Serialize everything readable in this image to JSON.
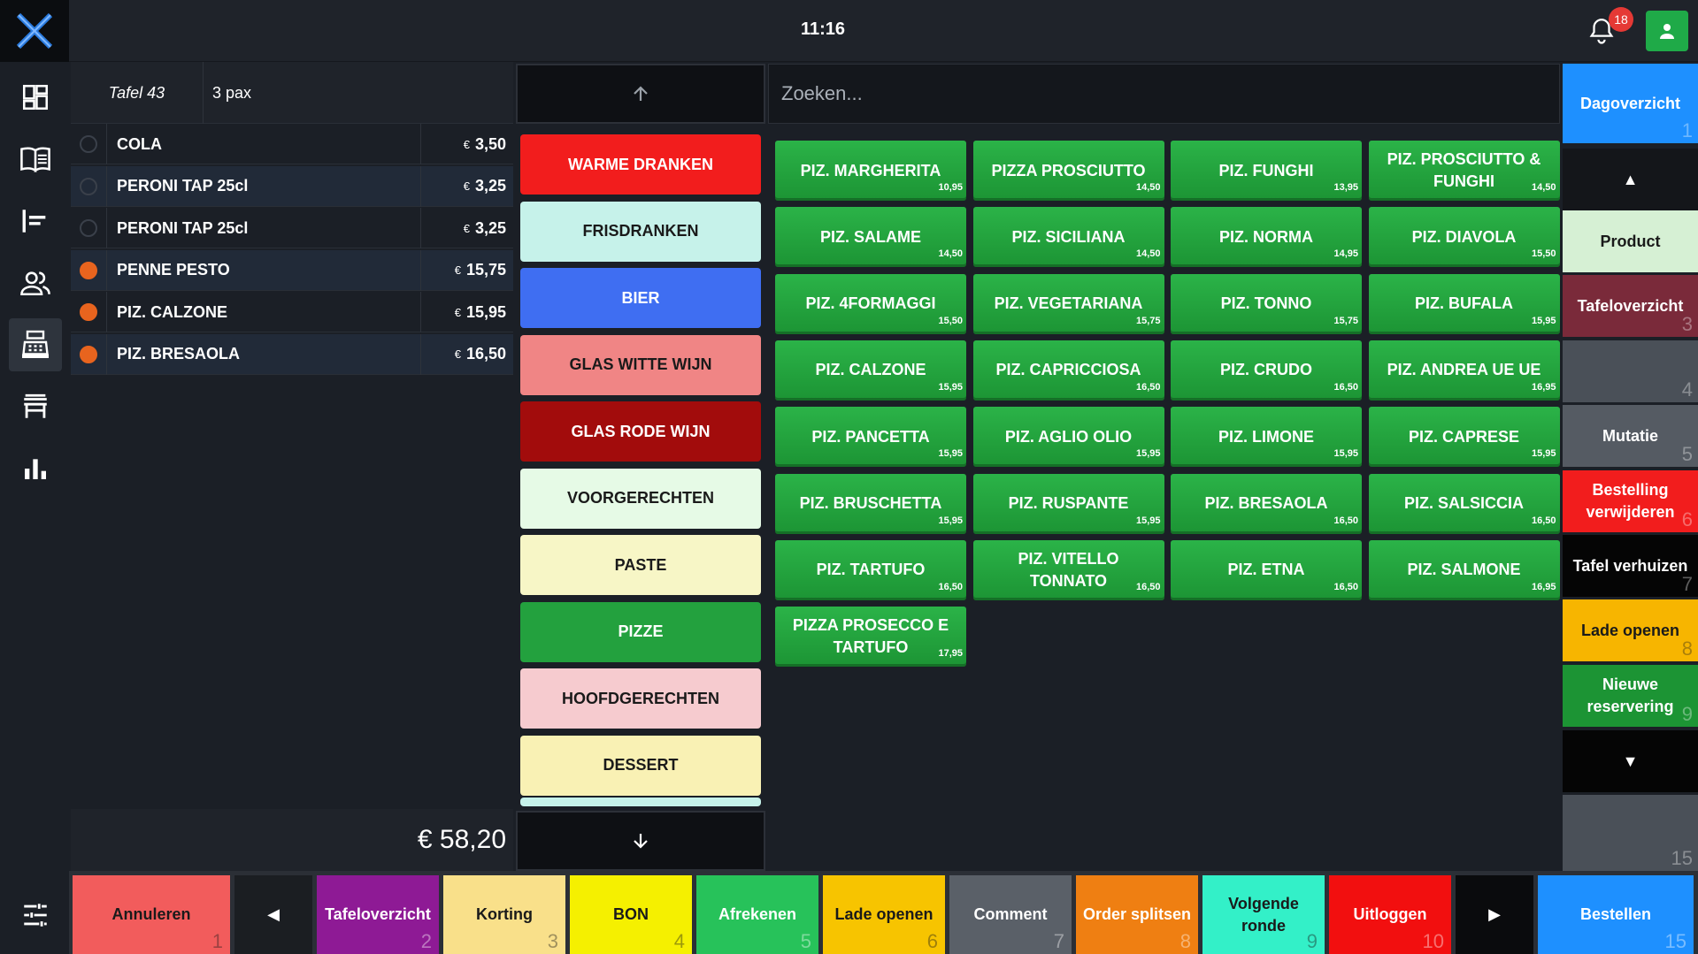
{
  "topbar": {
    "time": "11:16",
    "notifications": "18"
  },
  "colors": {
    "accent_green": "#1faa48",
    "badge_red": "#e53935",
    "dot_orange": "#e8641e"
  },
  "order": {
    "table": "Tafel 43",
    "pax": "3 pax",
    "currency": "€",
    "items": [
      {
        "name": "COLA",
        "price": "3,50",
        "status": "pending"
      },
      {
        "name": "PERONI TAP 25cl",
        "price": "3,25",
        "status": "pending"
      },
      {
        "name": "PERONI TAP 25cl",
        "price": "3,25",
        "status": "pending"
      },
      {
        "name": "PENNE PESTO",
        "price": "15,75",
        "status": "ordered"
      },
      {
        "name": "PIZ. CALZONE",
        "price": "15,95",
        "status": "ordered"
      },
      {
        "name": "PIZ. BRESAOLA",
        "price": "16,50",
        "status": "ordered"
      }
    ],
    "total": "€ 58,20"
  },
  "categories": [
    {
      "label": "WARME DRANKEN",
      "color": "#f21d1d",
      "text": "#ffffff"
    },
    {
      "label": "FRISDRANKEN",
      "color": "#c6f2ea",
      "text": "#1a1a1a"
    },
    {
      "label": "BIER",
      "color": "#3f6ef2",
      "text": "#ffffff"
    },
    {
      "label": "GLAS WITTE WIJN",
      "color": "#f08585",
      "text": "#1a1a1a"
    },
    {
      "label": "GLAS RODE WIJN",
      "color": "#a20c0c",
      "text": "#ffffff"
    },
    {
      "label": "VOORGERECHTEN",
      "color": "#e6fae6",
      "text": "#1a1a1a"
    },
    {
      "label": "PASTE",
      "color": "#f7f6c6",
      "text": "#1a1a1a"
    },
    {
      "label": "PIZZE",
      "color": "#23a13e",
      "text": "#ffffff"
    },
    {
      "label": "HOOFDGERECHTEN",
      "color": "#f6cbcf",
      "text": "#1a1a1a"
    },
    {
      "label": "DESSERT",
      "color": "#f9f1b4",
      "text": "#1a1a1a"
    }
  ],
  "search": {
    "placeholder": "Zoeken..."
  },
  "products": [
    {
      "name": "PIZ. MARGHERITA",
      "price": "10,95"
    },
    {
      "name": "PIZZA PROSCIUTTO",
      "price": "14,50"
    },
    {
      "name": "PIZ. FUNGHI",
      "price": "13,95"
    },
    {
      "name": "PIZ. PROSCIUTTO & FUNGHI",
      "price": "14,50"
    },
    {
      "name": "PIZ. SALAME",
      "price": "14,50"
    },
    {
      "name": "PIZ. SICILIANA",
      "price": "14,50"
    },
    {
      "name": "PIZ. NORMA",
      "price": "14,95"
    },
    {
      "name": "PIZ. DIAVOLA",
      "price": "15,50"
    },
    {
      "name": "PIZ. 4FORMAGGI",
      "price": "15,50"
    },
    {
      "name": "PIZ. VEGETARIANA",
      "price": "15,75"
    },
    {
      "name": "PIZ. TONNO",
      "price": "15,75"
    },
    {
      "name": "PIZ. BUFALA",
      "price": "15,95"
    },
    {
      "name": "PIZ. CALZONE",
      "price": "15,95"
    },
    {
      "name": "PIZ. CAPRICCIOSA",
      "price": "16,50"
    },
    {
      "name": "PIZ. CRUDO",
      "price": "16,50"
    },
    {
      "name": "PIZ. ANDREA UE UE",
      "price": "16,95"
    },
    {
      "name": "PIZ. PANCETTA",
      "price": "15,95"
    },
    {
      "name": "PIZ. AGLIO OLIO",
      "price": "15,95"
    },
    {
      "name": "PIZ. LIMONE",
      "price": "15,95"
    },
    {
      "name": "PIZ. CAPRESE",
      "price": "15,95"
    },
    {
      "name": "PIZ. BRUSCHETTA",
      "price": "15,95"
    },
    {
      "name": "PIZ. RUSPANTE",
      "price": "15,95"
    },
    {
      "name": "PIZ. BRESAOLA",
      "price": "16,50"
    },
    {
      "name": "PIZ. SALSICCIA",
      "price": "16,50"
    },
    {
      "name": "PIZ. TARTUFO",
      "price": "16,50"
    },
    {
      "name": "PIZ. VITELLO TONNATO",
      "price": "16,50"
    },
    {
      "name": "PIZ. ETNA",
      "price": "16,50"
    },
    {
      "name": "PIZ. SALMONE",
      "price": "16,95"
    },
    {
      "name": "PIZZA PROSECCO E TARTUFO",
      "price": "17,95"
    }
  ],
  "right_actions": [
    {
      "label": "Dagoverzicht",
      "num": "1",
      "color": "#1e90ff",
      "text": "#ffffff"
    },
    {
      "label": "▲",
      "num": "",
      "color": "#14161a",
      "text": "#ffffff"
    },
    {
      "label": "Product",
      "num": "",
      "color": "#d6f0d4",
      "text": "#1a1a1a"
    },
    {
      "label": "Tafeloverzicht",
      "num": "3",
      "color": "#7a2a3a",
      "text": "#ffffff"
    },
    {
      "label": "",
      "num": "4",
      "color": "#4a5058",
      "text": "#ffffff"
    },
    {
      "label": "Mutatie",
      "num": "5",
      "color": "#555b63",
      "text": "#ffffff"
    },
    {
      "label": "Bestelling verwijderen",
      "num": "6",
      "color": "#f21d1d",
      "text": "#ffffff"
    },
    {
      "label": "Tafel verhuizen",
      "num": "7",
      "color": "#050505",
      "text": "#ffffff"
    },
    {
      "label": "Lade openen",
      "num": "8",
      "color": "#f7b500",
      "text": "#1a1a1a"
    },
    {
      "label": "Nieuwe reservering",
      "num": "9",
      "color": "#1c9434",
      "text": "#ffffff"
    },
    {
      "label": "▼",
      "num": "",
      "color": "#050505",
      "text": "#ffffff"
    },
    {
      "label": "",
      "num": "15",
      "color": "#4a5058",
      "text": "#ffffff"
    }
  ],
  "bottom_actions": [
    {
      "label": "Annuleren",
      "num": "1",
      "color": "#f25c5c",
      "text": "#1a1a1a",
      "w": 178
    },
    {
      "label": "◀",
      "num": "",
      "color": "#1b1e22",
      "text": "#ffffff",
      "w": 88
    },
    {
      "label": "Tafeloverzicht",
      "num": "2",
      "color": "#8e1a95",
      "text": "#ffffff",
      "w": 138
    },
    {
      "label": "Korting",
      "num": "3",
      "color": "#f9e08a",
      "text": "#1a1a1a",
      "w": 138
    },
    {
      "label": "BON",
      "num": "4",
      "color": "#f5f000",
      "text": "#1a1a1a",
      "w": 138
    },
    {
      "label": "Afrekenen",
      "num": "5",
      "color": "#27c25a",
      "text": "#ffffff",
      "w": 138
    },
    {
      "label": "Lade openen",
      "num": "6",
      "color": "#f7c400",
      "text": "#1a1a1a",
      "w": 138
    },
    {
      "label": "Comment",
      "num": "7",
      "color": "#5a6068",
      "text": "#ffffff",
      "w": 138
    },
    {
      "label": "Order splitsen",
      "num": "8",
      "color": "#ef7f12",
      "text": "#ffffff",
      "w": 138
    },
    {
      "label": "Volgende ronde",
      "num": "9",
      "color": "#33f0c8",
      "text": "#1a1a1a",
      "w": 138
    },
    {
      "label": "Uitloggen",
      "num": "10",
      "color": "#f20f0f",
      "text": "#ffffff",
      "w": 138
    },
    {
      "label": "▶",
      "num": "",
      "color": "#0a0b0d",
      "text": "#ffffff",
      "w": 88
    },
    {
      "label": "Bestellen",
      "num": "15",
      "color": "#1e90ff",
      "text": "#ffffff",
      "w": 176
    }
  ]
}
